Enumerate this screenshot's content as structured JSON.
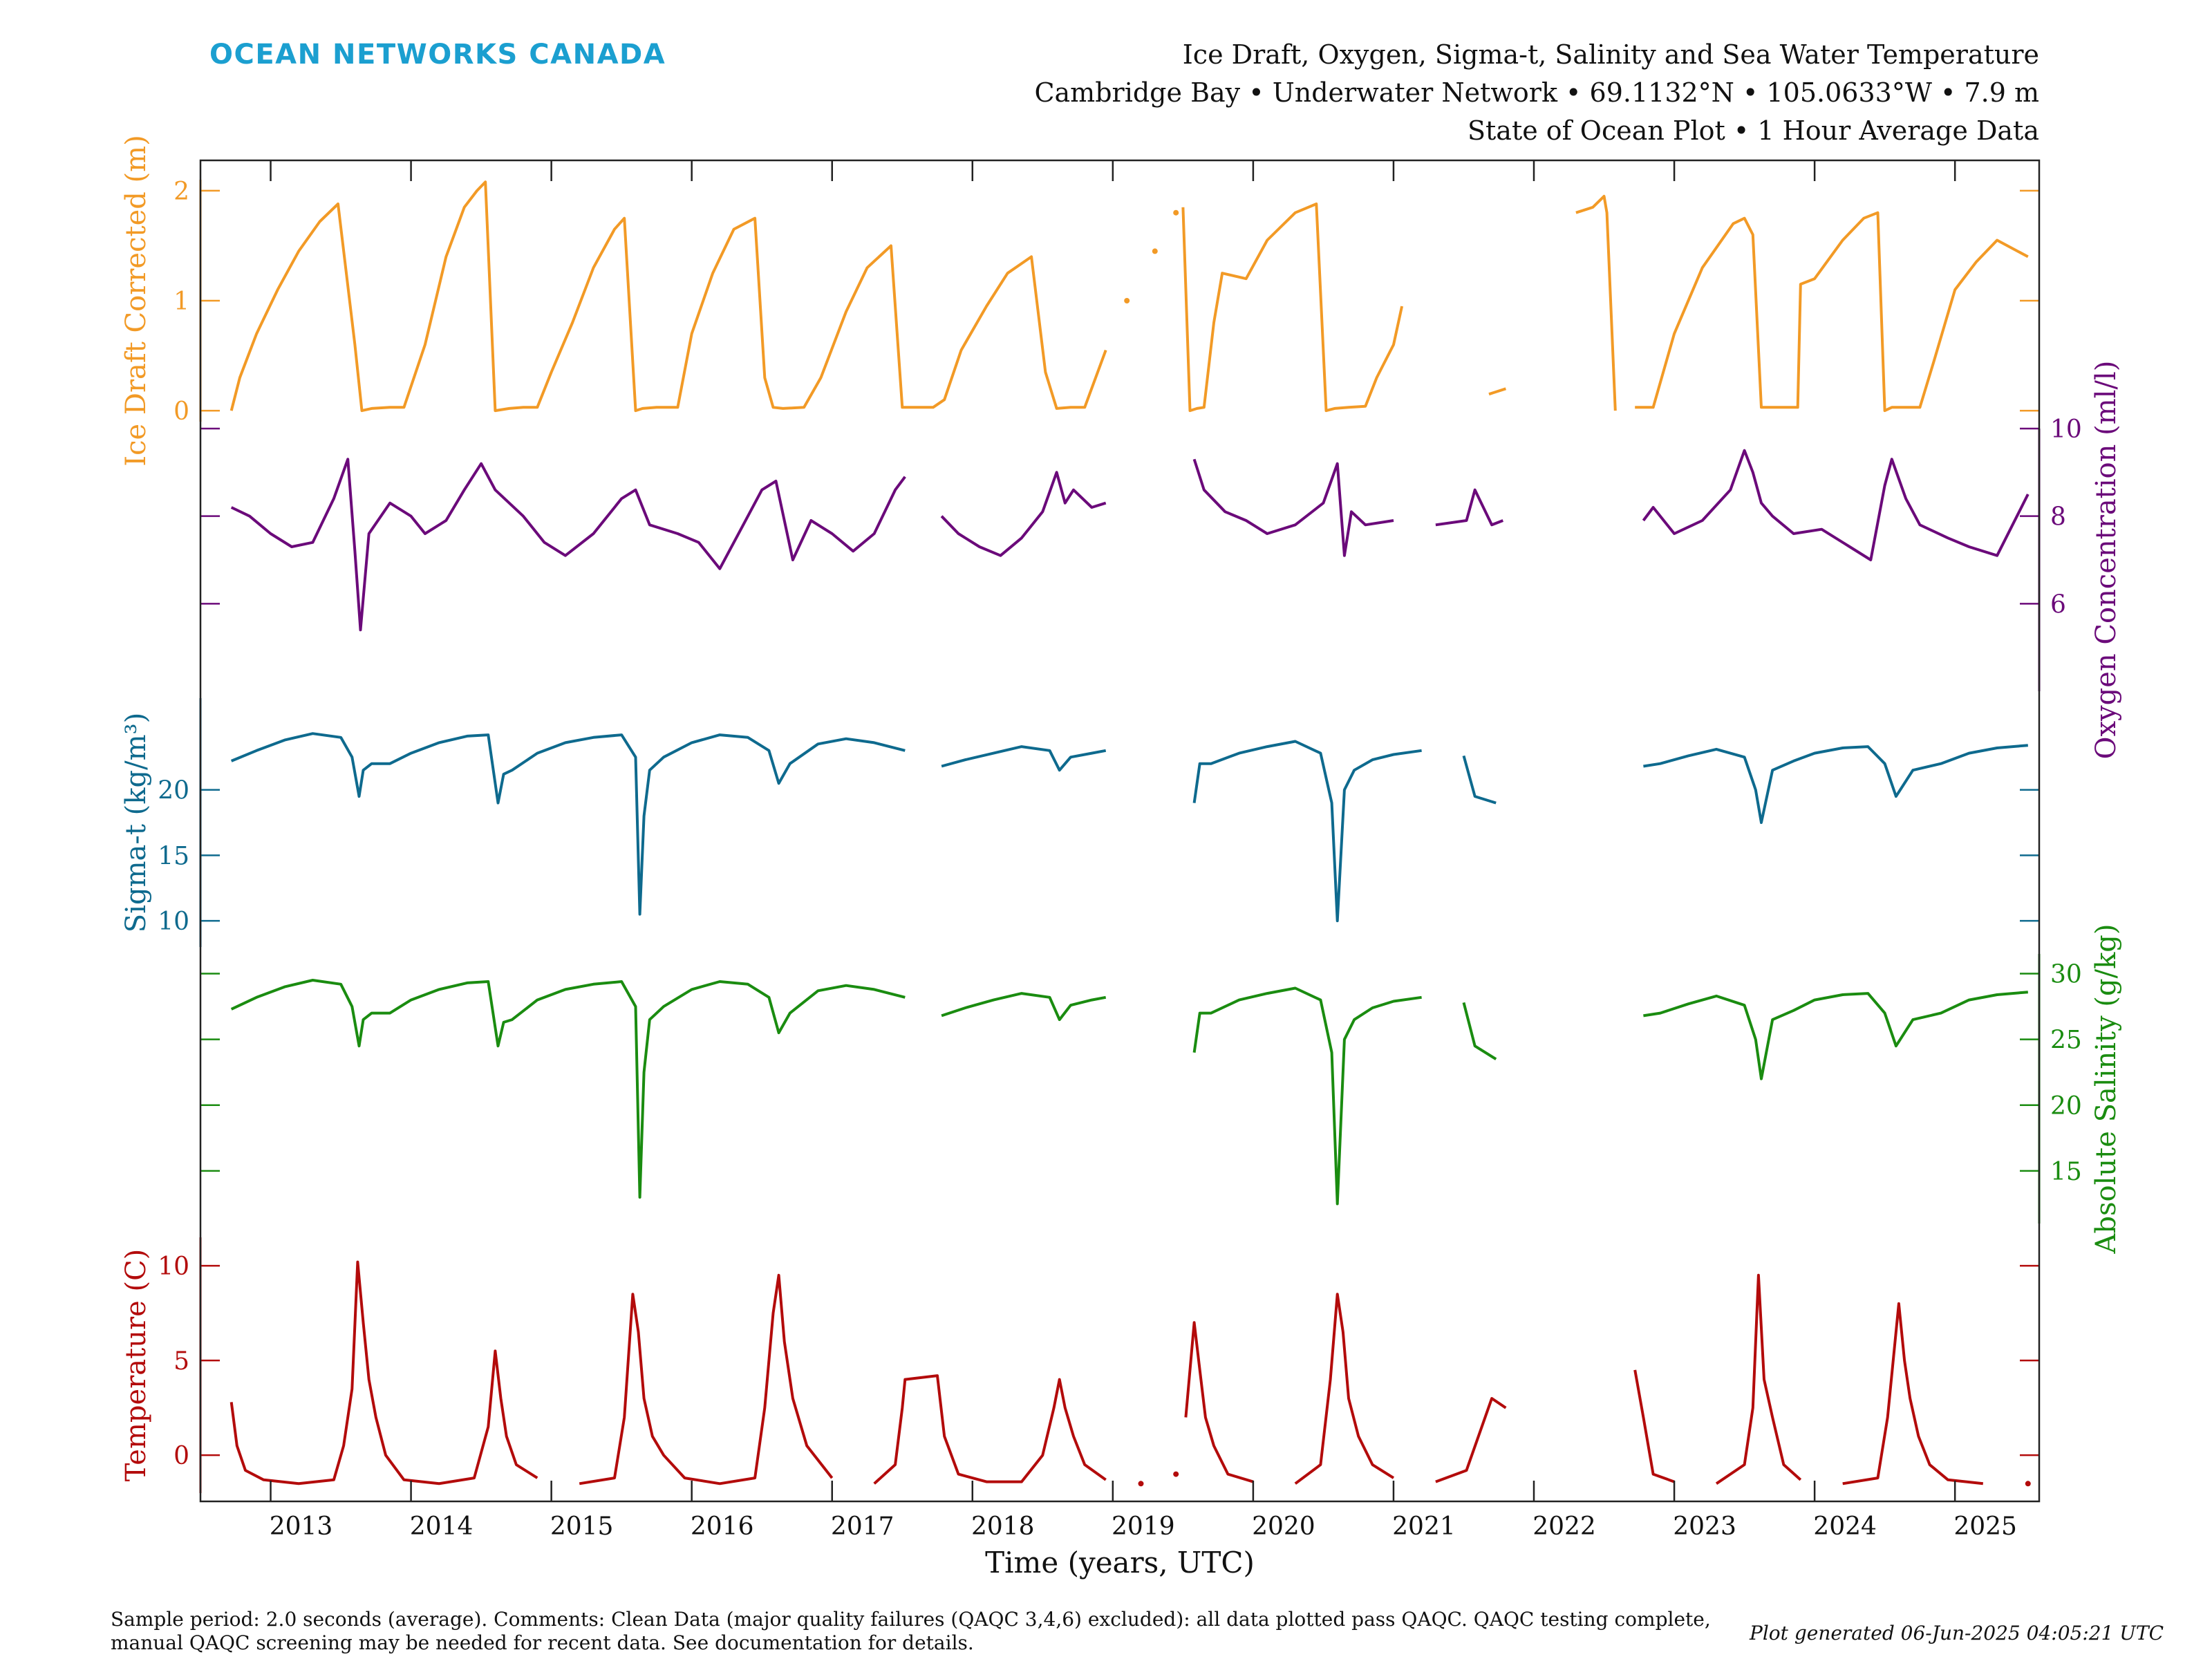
{
  "header": {
    "logo": "OCEAN NETWORKS CANADA",
    "title_line1": "Ice Draft, Oxygen, Sigma-t, Salinity and Sea Water Temperature",
    "title_line2": "Cambridge Bay • Underwater Network • 69.1132°N • 105.0633°W • 7.9 m",
    "title_line3": "State of Ocean Plot • 1 Hour Average Data"
  },
  "footer": {
    "sample_line1": "Sample period: 2.0 seconds (average). Comments: Clean Data (major quality failures (QAQC 3,4,6) excluded): all data plotted pass QAQC. QAQC testing complete,",
    "sample_line2": "manual QAQC screening may be needed for recent data. See documentation for details.",
    "generated": "Plot generated 06-Jun-2025 04:05:21 UTC"
  },
  "colors": {
    "ice": "#f29a26",
    "oxygen": "#6b0a7a",
    "sigma": "#0e6a8e",
    "salinity": "#1a8c10",
    "temperature": "#b30b0b",
    "logo": "#1b9fd0"
  },
  "chart_data": {
    "type": "line",
    "xlabel": "Time (years, UTC)",
    "xlim": [
      2012.5,
      2025.6
    ],
    "x_ticks": [
      "2013",
      "2014",
      "2015",
      "2016",
      "2017",
      "2018",
      "2019",
      "2020",
      "2021",
      "2022",
      "2023",
      "2024",
      "2025"
    ],
    "series": [
      {
        "name": "Ice Draft Corrected",
        "ylabel": "Ice Draft Corrected (m)",
        "axis_side": "left",
        "ylim": [
          -0.1,
          2.1
        ],
        "ticks": [
          "0",
          "1",
          "2"
        ],
        "x": [
          2012.72,
          2012.78,
          2012.9,
          2013.05,
          2013.2,
          2013.35,
          2013.48,
          2013.53,
          2013.6,
          2013.65,
          2013.72,
          2013.85,
          2013.95,
          2014.1,
          2014.25,
          2014.38,
          2014.47,
          2014.53,
          2014.6,
          2014.7,
          2014.8,
          2014.9,
          2015.0,
          2015.15,
          2015.3,
          2015.45,
          2015.52,
          2015.6,
          2015.65,
          2015.75,
          2015.9,
          2016.0,
          2016.15,
          2016.3,
          2016.45,
          2016.52,
          2016.58,
          2016.65,
          2016.8,
          2016.92,
          2017.1,
          2017.25,
          2017.42,
          2017.5,
          2017.58,
          2017.72,
          2017.8,
          2017.92,
          2018.1,
          2018.25,
          2018.42,
          2018.52,
          2018.6,
          2018.7,
          2018.8,
          2018.95,
          2019.1,
          2019.3,
          2019.45,
          2019.5,
          2019.55,
          2019.6,
          2019.65,
          2019.72,
          2019.78,
          2019.95,
          2020.1,
          2020.3,
          2020.45,
          2020.52,
          2020.58,
          2020.68,
          2020.8,
          2020.88,
          2021.0,
          2021.06,
          2021.68,
          2021.8,
          2022.3,
          2022.42,
          2022.5,
          2022.52,
          2022.58,
          2022.72,
          2022.85,
          2023.0,
          2023.2,
          2023.42,
          2023.5,
          2023.56,
          2023.62,
          2023.75,
          2023.85,
          2023.88,
          2023.9,
          2024.0,
          2024.2,
          2024.35,
          2024.45,
          2024.5,
          2024.55,
          2024.62,
          2024.75,
          2024.85,
          2025.0,
          2025.15,
          2025.3,
          2025.52
        ],
        "y": [
          0.0,
          0.3,
          0.7,
          1.1,
          1.45,
          1.72,
          1.88,
          1.35,
          0.6,
          0.0,
          0.02,
          0.03,
          0.03,
          0.6,
          1.4,
          1.85,
          2.0,
          2.08,
          0.0,
          0.02,
          0.03,
          0.03,
          0.35,
          0.8,
          1.3,
          1.65,
          1.75,
          0.0,
          0.02,
          0.03,
          0.03,
          0.7,
          1.25,
          1.65,
          1.75,
          0.3,
          0.03,
          0.02,
          0.03,
          0.3,
          0.9,
          1.3,
          1.5,
          0.03,
          0.03,
          0.03,
          0.1,
          0.55,
          0.95,
          1.25,
          1.4,
          0.35,
          0.02,
          0.03,
          0.03,
          0.55,
          1.0,
          1.45,
          1.8,
          1.85,
          0.0,
          0.02,
          0.03,
          0.8,
          1.25,
          1.2,
          1.55,
          1.8,
          1.88,
          0.0,
          0.02,
          0.03,
          0.04,
          0.3,
          0.6,
          0.95,
          0.15,
          0.2,
          1.8,
          1.85,
          1.95,
          1.8,
          0.0,
          0.03,
          0.03,
          0.7,
          1.3,
          1.7,
          1.75,
          1.6,
          0.03,
          0.03,
          0.03,
          0.03,
          1.15,
          1.2,
          1.55,
          1.75,
          1.8,
          0.0,
          0.03,
          0.03,
          0.03,
          0.45,
          1.1,
          1.35,
          1.55,
          1.4
        ]
      },
      {
        "name": "Oxygen Concentration",
        "ylabel": "Oxygen Concentration (ml/l)",
        "axis_side": "right",
        "ylim": [
          4.0,
          10.0
        ],
        "ticks": [
          "6",
          "8",
          "10"
        ],
        "x": [
          2012.72,
          2012.85,
          2013.0,
          2013.15,
          2013.3,
          2013.45,
          2013.55,
          2013.6,
          2013.64,
          2013.7,
          2013.85,
          2014.0,
          2014.1,
          2014.25,
          2014.38,
          2014.5,
          2014.6,
          2014.8,
          2014.95,
          2015.1,
          2015.3,
          2015.5,
          2015.6,
          2015.7,
          2015.9,
          2016.05,
          2016.2,
          2016.35,
          2016.5,
          2016.6,
          2016.72,
          2016.85,
          2017.0,
          2017.15,
          2017.3,
          2017.45,
          2017.52,
          2017.78,
          2017.9,
          2018.05,
          2018.2,
          2018.35,
          2018.5,
          2018.6,
          2018.66,
          2018.72,
          2018.85,
          2018.95,
          2019.58,
          2019.65,
          2019.8,
          2019.95,
          2020.1,
          2020.3,
          2020.5,
          2020.6,
          2020.65,
          2020.7,
          2020.8,
          2021.0,
          2021.3,
          2021.52,
          2021.58,
          2021.7,
          2021.78,
          2022.78,
          2022.85,
          2023.0,
          2023.2,
          2023.4,
          2023.5,
          2023.56,
          2023.62,
          2023.7,
          2023.85,
          2024.05,
          2024.25,
          2024.4,
          2024.5,
          2024.55,
          2024.65,
          2024.75,
          2024.95,
          2025.1,
          2025.3,
          2025.52
        ],
        "y": [
          8.2,
          8.0,
          7.6,
          7.3,
          7.4,
          8.4,
          9.3,
          7.2,
          5.4,
          7.6,
          8.3,
          8.0,
          7.6,
          7.9,
          8.6,
          9.2,
          8.6,
          8.0,
          7.4,
          7.1,
          7.6,
          8.4,
          8.6,
          7.8,
          7.6,
          7.4,
          6.8,
          7.7,
          8.6,
          8.8,
          7.0,
          7.9,
          7.6,
          7.2,
          7.6,
          8.6,
          8.9,
          8.0,
          7.6,
          7.3,
          7.1,
          7.5,
          8.1,
          9.0,
          8.3,
          8.6,
          8.2,
          8.3,
          9.3,
          8.6,
          8.1,
          7.9,
          7.6,
          7.8,
          8.3,
          9.2,
          7.1,
          8.1,
          7.8,
          7.9,
          7.8,
          7.9,
          8.6,
          7.8,
          7.9,
          7.9,
          8.2,
          7.6,
          7.9,
          8.6,
          9.5,
          9.0,
          8.3,
          8.0,
          7.6,
          7.7,
          7.3,
          7.0,
          8.7,
          9.3,
          8.4,
          7.8,
          7.5,
          7.3,
          7.1,
          8.5
        ]
      },
      {
        "name": "Sigma-t",
        "ylabel": "Sigma-t (kg/m³)",
        "axis_side": "left",
        "ylim": [
          8.0,
          27.0
        ],
        "ticks": [
          "10",
          "15",
          "20"
        ],
        "x": [
          2012.72,
          2012.9,
          2013.1,
          2013.3,
          2013.5,
          2013.58,
          2013.63,
          2013.66,
          2013.72,
          2013.85,
          2014.0,
          2014.2,
          2014.4,
          2014.55,
          2014.62,
          2014.66,
          2014.72,
          2014.9,
          2015.1,
          2015.3,
          2015.5,
          2015.6,
          2015.63,
          2015.66,
          2015.7,
          2015.8,
          2016.0,
          2016.2,
          2016.4,
          2016.55,
          2016.62,
          2016.7,
          2016.9,
          2017.1,
          2017.3,
          2017.52,
          2017.78,
          2017.95,
          2018.15,
          2018.35,
          2018.55,
          2018.62,
          2018.7,
          2018.85,
          2018.95,
          2019.58,
          2019.62,
          2019.7,
          2019.9,
          2020.1,
          2020.3,
          2020.48,
          2020.56,
          2020.6,
          2020.65,
          2020.72,
          2020.85,
          2021.0,
          2021.2,
          2021.5,
          2021.58,
          2021.73,
          2022.78,
          2022.9,
          2023.1,
          2023.3,
          2023.5,
          2023.58,
          2023.62,
          2023.7,
          2023.85,
          2024.0,
          2024.2,
          2024.38,
          2024.5,
          2024.58,
          2024.7,
          2024.9,
          2025.1,
          2025.3,
          2025.52
        ],
        "y": [
          22.2,
          23.0,
          23.8,
          24.3,
          24.0,
          22.5,
          19.5,
          21.5,
          22.0,
          22.0,
          22.8,
          23.6,
          24.1,
          24.2,
          19.0,
          21.2,
          21.5,
          22.8,
          23.6,
          24.0,
          24.2,
          22.5,
          10.5,
          18.0,
          21.5,
          22.5,
          23.6,
          24.2,
          24.0,
          23.0,
          20.5,
          22.0,
          23.5,
          23.9,
          23.6,
          23.0,
          21.8,
          22.3,
          22.8,
          23.3,
          23.0,
          21.5,
          22.5,
          22.8,
          23.0,
          19.0,
          22.0,
          22.0,
          22.8,
          23.3,
          23.7,
          22.8,
          19.0,
          10.0,
          20.0,
          21.5,
          22.3,
          22.7,
          23.0,
          22.6,
          19.5,
          19.0,
          21.8,
          22.0,
          22.6,
          23.1,
          22.5,
          20.0,
          17.5,
          21.5,
          22.2,
          22.8,
          23.2,
          23.3,
          22.0,
          19.5,
          21.5,
          22.0,
          22.8,
          23.2,
          23.4
        ]
      },
      {
        "name": "Absolute Salinity",
        "ylabel": "Absolute Salinity (g/kg)",
        "axis_side": "right",
        "ylim": [
          11.0,
          31.5
        ],
        "ticks": [
          "15",
          "20",
          "25",
          "30"
        ],
        "x": [
          2012.72,
          2012.9,
          2013.1,
          2013.3,
          2013.5,
          2013.58,
          2013.63,
          2013.66,
          2013.72,
          2013.85,
          2014.0,
          2014.2,
          2014.4,
          2014.55,
          2014.62,
          2014.66,
          2014.72,
          2014.9,
          2015.1,
          2015.3,
          2015.5,
          2015.6,
          2015.63,
          2015.66,
          2015.7,
          2015.8,
          2016.0,
          2016.2,
          2016.4,
          2016.55,
          2016.62,
          2016.7,
          2016.9,
          2017.1,
          2017.3,
          2017.52,
          2017.78,
          2017.95,
          2018.15,
          2018.35,
          2018.55,
          2018.62,
          2018.7,
          2018.85,
          2018.95,
          2019.58,
          2019.62,
          2019.7,
          2019.9,
          2020.1,
          2020.3,
          2020.48,
          2020.56,
          2020.6,
          2020.65,
          2020.72,
          2020.85,
          2021.0,
          2021.2,
          2021.5,
          2021.58,
          2021.73,
          2022.78,
          2022.9,
          2023.1,
          2023.3,
          2023.5,
          2023.58,
          2023.62,
          2023.7,
          2023.85,
          2024.0,
          2024.2,
          2024.38,
          2024.5,
          2024.58,
          2024.7,
          2024.9,
          2025.1,
          2025.3,
          2025.52
        ],
        "y": [
          27.3,
          28.2,
          29.0,
          29.5,
          29.2,
          27.5,
          24.5,
          26.5,
          27.0,
          27.0,
          28.0,
          28.8,
          29.3,
          29.4,
          24.5,
          26.3,
          26.5,
          28.0,
          28.8,
          29.2,
          29.4,
          27.5,
          13.0,
          22.5,
          26.5,
          27.5,
          28.8,
          29.4,
          29.2,
          28.2,
          25.5,
          27.0,
          28.7,
          29.1,
          28.8,
          28.2,
          26.8,
          27.4,
          28.0,
          28.5,
          28.2,
          26.5,
          27.6,
          28.0,
          28.2,
          24.0,
          27.0,
          27.0,
          28.0,
          28.5,
          28.9,
          28.0,
          24.0,
          12.5,
          25.0,
          26.5,
          27.4,
          27.9,
          28.2,
          27.8,
          24.5,
          23.5,
          26.8,
          27.0,
          27.7,
          28.3,
          27.6,
          25.0,
          22.0,
          26.5,
          27.2,
          28.0,
          28.4,
          28.5,
          27.0,
          24.5,
          26.5,
          27.0,
          28.0,
          28.4,
          28.6
        ]
      },
      {
        "name": "Temperature",
        "ylabel": "Temperature (C)",
        "axis_side": "left",
        "ylim": [
          -2.0,
          11.5
        ],
        "ticks": [
          "0",
          "5",
          "10"
        ],
        "x": [
          2012.72,
          2012.76,
          2012.82,
          2012.95,
          2013.2,
          2013.45,
          2013.52,
          2013.58,
          2013.62,
          2013.66,
          2013.7,
          2013.75,
          2013.82,
          2013.95,
          2014.2,
          2014.45,
          2014.55,
          2014.6,
          2014.64,
          2014.68,
          2014.75,
          2014.9,
          2015.2,
          2015.45,
          2015.52,
          2015.58,
          2015.62,
          2015.66,
          2015.72,
          2015.8,
          2015.95,
          2016.2,
          2016.45,
          2016.52,
          2016.58,
          2016.62,
          2016.66,
          2016.72,
          2016.82,
          2017.0,
          2017.3,
          2017.45,
          2017.5,
          2017.52,
          2017.75,
          2017.8,
          2017.9,
          2018.1,
          2018.35,
          2018.5,
          2018.58,
          2018.62,
          2018.66,
          2018.72,
          2018.8,
          2018.95,
          2019.2,
          2019.45,
          2019.52,
          2019.58,
          2019.62,
          2019.66,
          2019.72,
          2019.82,
          2020.0,
          2020.3,
          2020.48,
          2020.55,
          2020.6,
          2020.64,
          2020.68,
          2020.75,
          2020.85,
          2021.0,
          2021.3,
          2021.52,
          2021.7,
          2021.8,
          2022.72,
          2022.78,
          2022.85,
          2023.0,
          2023.3,
          2023.5,
          2023.56,
          2023.6,
          2023.64,
          2023.7,
          2023.78,
          2023.9,
          2024.2,
          2024.45,
          2024.52,
          2024.6,
          2024.64,
          2024.68,
          2024.74,
          2024.82,
          2024.95,
          2025.2,
          2025.52
        ],
        "y": [
          2.8,
          0.5,
          -0.8,
          -1.3,
          -1.5,
          -1.3,
          0.5,
          3.5,
          10.2,
          7.0,
          4.0,
          2.0,
          0.0,
          -1.3,
          -1.5,
          -1.2,
          1.5,
          5.5,
          3.0,
          1.0,
          -0.5,
          -1.2,
          -1.5,
          -1.2,
          2.0,
          8.5,
          6.5,
          3.0,
          1.0,
          0.0,
          -1.2,
          -1.5,
          -1.2,
          2.5,
          7.5,
          9.5,
          6.0,
          3.0,
          0.5,
          -1.2,
          -1.5,
          -0.5,
          2.5,
          4.0,
          4.2,
          1.0,
          -1.0,
          -1.4,
          -1.4,
          0.0,
          2.5,
          4.0,
          2.5,
          1.0,
          -0.5,
          -1.3,
          -1.5,
          -1.0,
          2.0,
          7.0,
          4.5,
          2.0,
          0.5,
          -1.0,
          -1.4,
          -1.5,
          -0.5,
          4.0,
          8.5,
          6.5,
          3.0,
          1.0,
          -0.5,
          -1.2,
          -1.4,
          -0.8,
          3.0,
          2.5,
          4.5,
          2.0,
          -1.0,
          -1.4,
          -1.5,
          -0.5,
          2.5,
          9.5,
          4.0,
          2.0,
          -0.5,
          -1.3,
          -1.5,
          -1.2,
          2.0,
          8.0,
          5.0,
          3.0,
          1.0,
          -0.5,
          -1.3,
          -1.5,
          -1.5
        ]
      }
    ]
  }
}
